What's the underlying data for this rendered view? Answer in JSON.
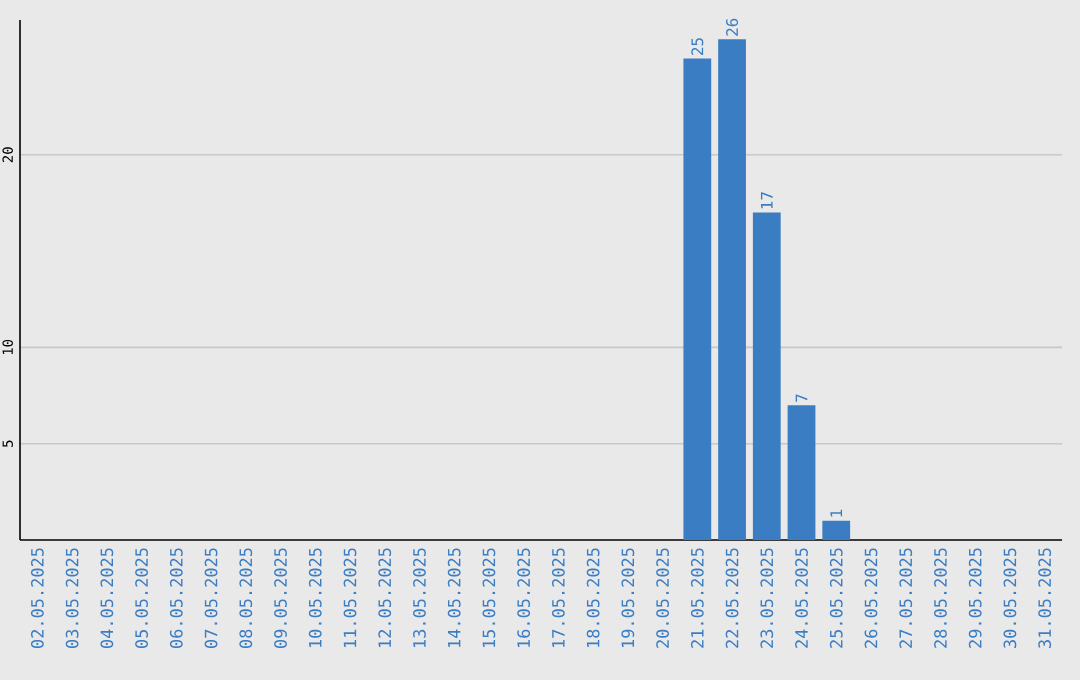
{
  "chart_data": {
    "type": "bar",
    "categories": [
      "02.05.2025",
      "03.05.2025",
      "04.05.2025",
      "05.05.2025",
      "06.05.2025",
      "07.05.2025",
      "08.05.2025",
      "09.05.2025",
      "10.05.2025",
      "11.05.2025",
      "12.05.2025",
      "13.05.2025",
      "14.05.2025",
      "15.05.2025",
      "16.05.2025",
      "17.05.2025",
      "18.05.2025",
      "19.05.2025",
      "20.05.2025",
      "21.05.2025",
      "22.05.2025",
      "23.05.2025",
      "24.05.2025",
      "25.05.2025",
      "26.05.2025",
      "27.05.2025",
      "28.05.2025",
      "29.05.2025",
      "30.05.2025",
      "31.05.2025"
    ],
    "values": [
      0,
      0,
      0,
      0,
      0,
      0,
      0,
      0,
      0,
      0,
      0,
      0,
      0,
      0,
      0,
      0,
      0,
      0,
      0,
      25,
      26,
      17,
      7,
      1,
      0,
      0,
      0,
      0,
      0,
      0
    ],
    "value_labels": [
      null,
      null,
      null,
      null,
      null,
      null,
      null,
      null,
      null,
      null,
      null,
      null,
      null,
      null,
      null,
      null,
      null,
      null,
      null,
      "25",
      "26",
      "17",
      "7",
      "1",
      null,
      null,
      null,
      null,
      null,
      null
    ],
    "color": "#3a7dc2",
    "ylim": [
      0,
      27
    ],
    "yticks": [
      5,
      10,
      20
    ],
    "grid": "y"
  }
}
